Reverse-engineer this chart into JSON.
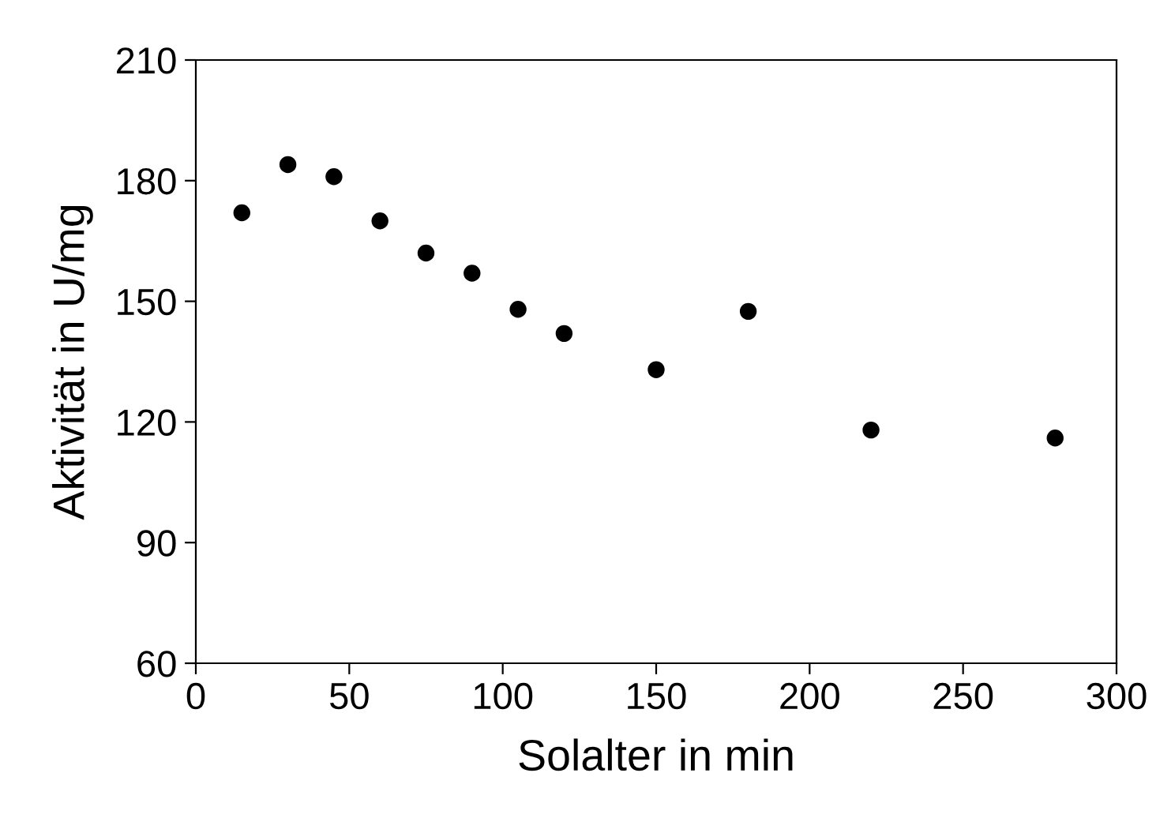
{
  "chart_data": {
    "type": "scatter",
    "xlabel": "Solalter in min",
    "ylabel": "Aktivität in U/mg",
    "x": [
      15,
      30,
      45,
      60,
      75,
      90,
      105,
      120,
      150,
      180,
      220,
      280
    ],
    "series": [
      {
        "color": "#000000",
        "values": [
          172,
          184,
          181,
          170,
          162,
          157,
          148,
          142,
          133,
          147.5,
          118,
          116
        ]
      }
    ],
    "xlim": [
      0,
      300
    ],
    "xticks": [
      0,
      50,
      100,
      150,
      200,
      250,
      300
    ],
    "ylim": [
      60,
      210
    ],
    "yticks": [
      60,
      90,
      120,
      150,
      180,
      210
    ],
    "marker": "circle",
    "grid": false,
    "legend": false
  }
}
